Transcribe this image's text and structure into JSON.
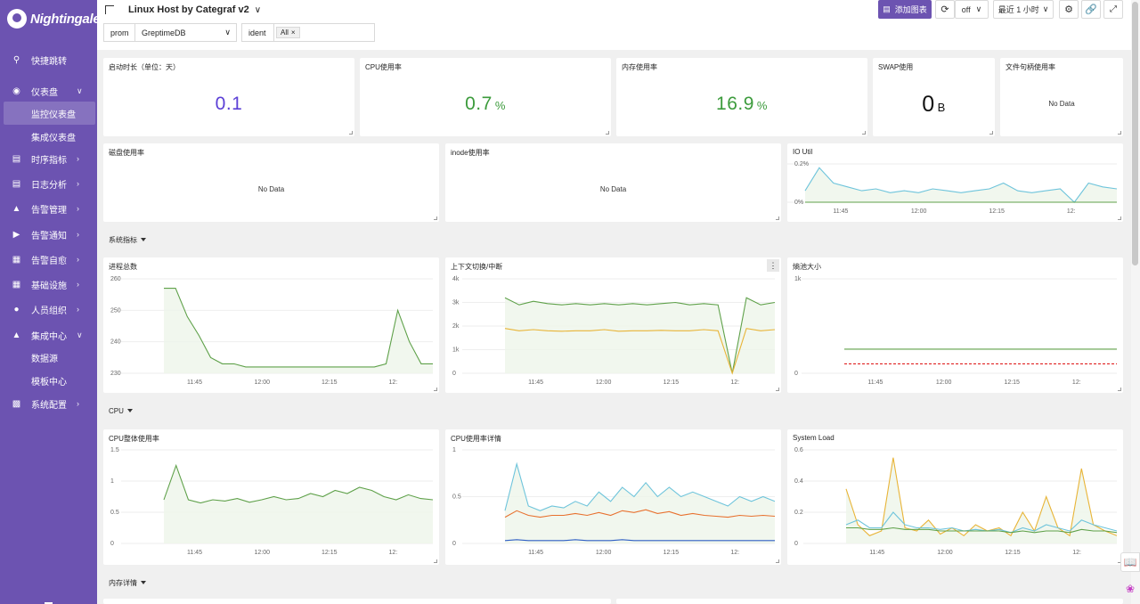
{
  "app": {
    "logo_text": "Nightingale"
  },
  "sidebar": {
    "items": [
      {
        "label": "快捷跳转",
        "icon": "search-icon"
      },
      {
        "label": "仪表盘",
        "icon": "dashboard-icon"
      },
      {
        "label": "监控仪表盘"
      },
      {
        "label": "集成仪表盘"
      },
      {
        "label": "时序指标",
        "icon": "chart-icon"
      },
      {
        "label": "日志分析",
        "icon": "log-icon"
      },
      {
        "label": "告警管理",
        "icon": "alarm-icon"
      },
      {
        "label": "告警通知",
        "icon": "notify-icon"
      },
      {
        "label": "告警自愈",
        "icon": "selfheal-icon"
      },
      {
        "label": "基础设施",
        "icon": "infra-icon"
      },
      {
        "label": "人员组织",
        "icon": "user-icon"
      },
      {
        "label": "集成中心",
        "icon": "integration-icon"
      },
      {
        "label": "数据源"
      },
      {
        "label": "模板中心"
      },
      {
        "label": "系统配置",
        "icon": "settings-icon"
      }
    ]
  },
  "header": {
    "title": "Linux Host by Categraf v2",
    "add_chart": "添加图表",
    "refresh_value": "off",
    "time_range": "最近 1 小时"
  },
  "filters": {
    "datasource_label": "prom",
    "datasource_value": "GreptimeDB",
    "ident_label": "ident",
    "ident_tag": "All"
  },
  "stats": {
    "uptime": {
      "title": "启动时长（单位：天）",
      "value": "0.1",
      "unit": "",
      "color": "#5B3FD6"
    },
    "cpu": {
      "title": "CPU使用率",
      "value": "0.7",
      "unit": "%",
      "color": "#3C9B3C"
    },
    "mem": {
      "title": "内存使用率",
      "value": "16.9",
      "unit": "%",
      "color": "#3C9B3C"
    },
    "swap": {
      "title": "SWAP使用",
      "value": "0",
      "unit": "B",
      "color": "#111111"
    },
    "fd": {
      "title": "文件句柄使用率",
      "nodata": "No Data"
    }
  },
  "row2": {
    "disk": {
      "title": "磁盘使用率",
      "nodata": "No Data"
    },
    "inode": {
      "title": "inode使用率",
      "nodata": "No Data"
    },
    "io": {
      "title": "IO Util"
    }
  },
  "sections": {
    "system": "系统指标",
    "cpu": "CPU",
    "memory": "内存详情"
  },
  "panels": {
    "procs": "进程总数",
    "ctx": "上下文切换/中断",
    "entropy": "熵池大小",
    "cpu_overall": "CPU整体使用率",
    "cpu_detail": "CPU使用率详情",
    "load": "System Load"
  },
  "chart_data": [
    {
      "type": "line",
      "title": "IO Util",
      "x_ticks": [
        "11:45",
        "12:00",
        "12:15",
        "12:"
      ],
      "y_ticks": [
        "0.2%",
        "0%"
      ],
      "series": [
        {
          "color": "#6EC4DB",
          "values": [
            0.06,
            0.18,
            0.1,
            0.08,
            0.06,
            0.07,
            0.05,
            0.06,
            0.05,
            0.07,
            0.06,
            0.05,
            0.06,
            0.07,
            0.1,
            0.06,
            0.05,
            0.06,
            0.07,
            0.0,
            0.1,
            0.08,
            0.07
          ]
        },
        {
          "color": "#5FA14A",
          "values": [
            0.0,
            0.0,
            0.0,
            0.0,
            0.0,
            0.0,
            0.0,
            0.0,
            0.0,
            0.0,
            0.0,
            0.0,
            0.0,
            0.0,
            0.0,
            0.0,
            0.0,
            0.0,
            0.0,
            0.0,
            0.0,
            0.0,
            0.0
          ]
        }
      ]
    },
    {
      "type": "line",
      "title": "进程总数",
      "x_ticks": [
        "11:45",
        "12:00",
        "12:15",
        "12:"
      ],
      "y_ticks": [
        "260",
        "250",
        "240",
        "230"
      ],
      "series": [
        {
          "color": "#5FA14A",
          "values": [
            257,
            257,
            248,
            242,
            235,
            233,
            233,
            232,
            232,
            232,
            232,
            232,
            232,
            232,
            232,
            232,
            232,
            232,
            232,
            233,
            250,
            240,
            233,
            233
          ]
        }
      ]
    },
    {
      "type": "line",
      "title": "上下文切换/中断",
      "x_ticks": [
        "11:45",
        "12:00",
        "12:15",
        "12:"
      ],
      "y_ticks": [
        "4k",
        "3k",
        "2k",
        "1k",
        "0"
      ],
      "series": [
        {
          "color": "#5FA14A",
          "values": [
            3200,
            2900,
            3050,
            2950,
            2900,
            2950,
            2900,
            2950,
            2900,
            2950,
            2900,
            2950,
            3000,
            2900,
            2950,
            2900,
            0,
            3200,
            2900,
            3000
          ]
        },
        {
          "color": "#E8B437",
          "values": [
            1900,
            1800,
            1850,
            1800,
            1780,
            1800,
            1800,
            1850,
            1780,
            1800,
            1800,
            1820,
            1800,
            1800,
            1850,
            1800,
            0,
            1900,
            1800,
            1850
          ]
        }
      ]
    },
    {
      "type": "line",
      "title": "熵池大小",
      "x_ticks": [
        "11:45",
        "12:00",
        "12:15",
        "12:"
      ],
      "y_ticks": [
        "1k",
        "0"
      ],
      "series": [
        {
          "color": "#5FA14A",
          "values": [
            256,
            256,
            256,
            256,
            256
          ]
        },
        {
          "color": "#E02020",
          "values": [
            100,
            100,
            100,
            100,
            100
          ]
        }
      ]
    },
    {
      "type": "line",
      "title": "CPU整体使用率",
      "x_ticks": [
        "11:45",
        "12:00",
        "12:15",
        "12:"
      ],
      "y_ticks": [
        "1.5",
        "1",
        "0.5",
        "0"
      ],
      "series": [
        {
          "color": "#5FA14A",
          "values": [
            0.7,
            1.25,
            0.7,
            0.65,
            0.7,
            0.68,
            0.72,
            0.66,
            0.7,
            0.75,
            0.7,
            0.72,
            0.8,
            0.75,
            0.85,
            0.8,
            0.9,
            0.85,
            0.75,
            0.7,
            0.78,
            0.72,
            0.7
          ]
        }
      ]
    },
    {
      "type": "line",
      "title": "CPU使用率详情",
      "x_ticks": [
        "11:45",
        "12:00",
        "12:15",
        "12:"
      ],
      "y_ticks": [
        "1",
        "0.5",
        "0"
      ],
      "series": [
        {
          "color": "#6EC4DB",
          "values": [
            0.35,
            0.85,
            0.4,
            0.35,
            0.4,
            0.38,
            0.45,
            0.4,
            0.55,
            0.45,
            0.6,
            0.5,
            0.65,
            0.5,
            0.6,
            0.5,
            0.55,
            0.5,
            0.45,
            0.4,
            0.5,
            0.45,
            0.5,
            0.45
          ]
        },
        {
          "color": "#E8712F",
          "values": [
            0.28,
            0.35,
            0.3,
            0.28,
            0.3,
            0.3,
            0.32,
            0.3,
            0.33,
            0.3,
            0.35,
            0.33,
            0.36,
            0.32,
            0.34,
            0.3,
            0.32,
            0.3,
            0.29,
            0.28,
            0.3,
            0.29,
            0.3,
            0.29
          ]
        },
        {
          "color": "#2F5FC4",
          "values": [
            0.03,
            0.04,
            0.03,
            0.03,
            0.03,
            0.03,
            0.04,
            0.03,
            0.03,
            0.03,
            0.04,
            0.03,
            0.03,
            0.03,
            0.03,
            0.03,
            0.03,
            0.03,
            0.03,
            0.03,
            0.03,
            0.03,
            0.03,
            0.03
          ]
        }
      ]
    },
    {
      "type": "line",
      "title": "System Load",
      "x_ticks": [
        "11:45",
        "12:00",
        "12:15",
        "12:"
      ],
      "y_ticks": [
        "0.6",
        "0.4",
        "0.2",
        "0"
      ],
      "series": [
        {
          "color": "#E8B437",
          "values": [
            0.35,
            0.12,
            0.05,
            0.08,
            0.55,
            0.1,
            0.08,
            0.15,
            0.06,
            0.1,
            0.05,
            0.12,
            0.08,
            0.1,
            0.05,
            0.2,
            0.08,
            0.3,
            0.1,
            0.05,
            0.48,
            0.12,
            0.08,
            0.05
          ]
        },
        {
          "color": "#6EC4DB",
          "values": [
            0.12,
            0.15,
            0.1,
            0.1,
            0.2,
            0.12,
            0.1,
            0.1,
            0.09,
            0.1,
            0.08,
            0.09,
            0.08,
            0.09,
            0.07,
            0.1,
            0.08,
            0.12,
            0.1,
            0.08,
            0.15,
            0.12,
            0.1,
            0.08
          ]
        },
        {
          "color": "#5FA14A",
          "values": [
            0.1,
            0.1,
            0.09,
            0.09,
            0.1,
            0.09,
            0.09,
            0.09,
            0.08,
            0.08,
            0.08,
            0.08,
            0.08,
            0.08,
            0.07,
            0.08,
            0.07,
            0.08,
            0.08,
            0.07,
            0.09,
            0.08,
            0.08,
            0.07
          ]
        }
      ]
    }
  ]
}
